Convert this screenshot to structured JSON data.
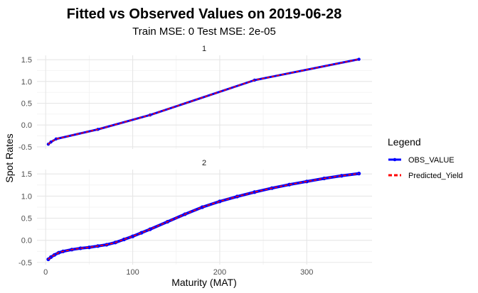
{
  "chart_data": {
    "type": "line",
    "title": "Fitted vs Observed Values on 2019-06-28",
    "subtitle": "Train MSE: 0 Test MSE: 2e-05",
    "xlabel": "Maturity (MAT)",
    "ylabel": "Spot Rates",
    "xlim": [
      -10,
      375
    ],
    "ylim": [
      -0.55,
      1.6
    ],
    "x_ticks": [
      0,
      100,
      200,
      300
    ],
    "x_tick_labels": [
      "0",
      "100",
      "200",
      "300"
    ],
    "y_ticks": [
      -0.5,
      0.0,
      0.5,
      1.0,
      1.5
    ],
    "y_tick_labels": [
      "-0.5",
      "0.0",
      "0.5",
      "1.0",
      "1.5"
    ],
    "grid": true,
    "legend": {
      "title": "Legend",
      "position": "right",
      "entries": [
        {
          "label": "OBS_VALUE",
          "color": "#0000ff",
          "style": "solid-with-points"
        },
        {
          "label": "Predicted_Yield",
          "color": "#ff0000",
          "style": "dashed"
        }
      ]
    },
    "panels": [
      {
        "strip": "1",
        "series": [
          {
            "name": "OBS_VALUE",
            "x": [
              3,
              6,
              12,
              60,
              120,
              240,
              360
            ],
            "y": [
              -0.44,
              -0.39,
              -0.32,
              -0.1,
              0.23,
              1.03,
              1.51
            ]
          },
          {
            "name": "Predicted_Yield",
            "x": [
              3,
              6,
              12,
              60,
              120,
              240,
              360
            ],
            "y": [
              -0.44,
              -0.39,
              -0.32,
              -0.1,
              0.23,
              1.03,
              1.51
            ]
          }
        ]
      },
      {
        "strip": "2",
        "series": [
          {
            "name": "OBS_VALUE",
            "x": [
              3,
              6,
              10,
              15,
              20,
              30,
              40,
              50,
              60,
              70,
              80,
              90,
              100,
              110,
              120,
              140,
              160,
              180,
              200,
              220,
              240,
              260,
              280,
              300,
              320,
              340,
              360
            ],
            "y": [
              -0.43,
              -0.38,
              -0.33,
              -0.28,
              -0.25,
              -0.21,
              -0.18,
              -0.16,
              -0.13,
              -0.1,
              -0.05,
              0.02,
              0.09,
              0.17,
              0.25,
              0.42,
              0.59,
              0.75,
              0.88,
              0.99,
              1.09,
              1.18,
              1.26,
              1.33,
              1.4,
              1.46,
              1.51
            ]
          },
          {
            "name": "Predicted_Yield",
            "x": [
              3,
              6,
              10,
              15,
              20,
              30,
              40,
              50,
              60,
              70,
              80,
              90,
              100,
              110,
              120,
              140,
              160,
              180,
              200,
              220,
              240,
              260,
              280,
              300,
              320,
              340,
              360
            ],
            "y": [
              -0.43,
              -0.38,
              -0.33,
              -0.28,
              -0.25,
              -0.21,
              -0.18,
              -0.16,
              -0.13,
              -0.1,
              -0.05,
              0.02,
              0.09,
              0.17,
              0.25,
              0.42,
              0.59,
              0.75,
              0.88,
              0.99,
              1.09,
              1.18,
              1.26,
              1.33,
              1.4,
              1.46,
              1.51
            ]
          }
        ]
      }
    ]
  }
}
